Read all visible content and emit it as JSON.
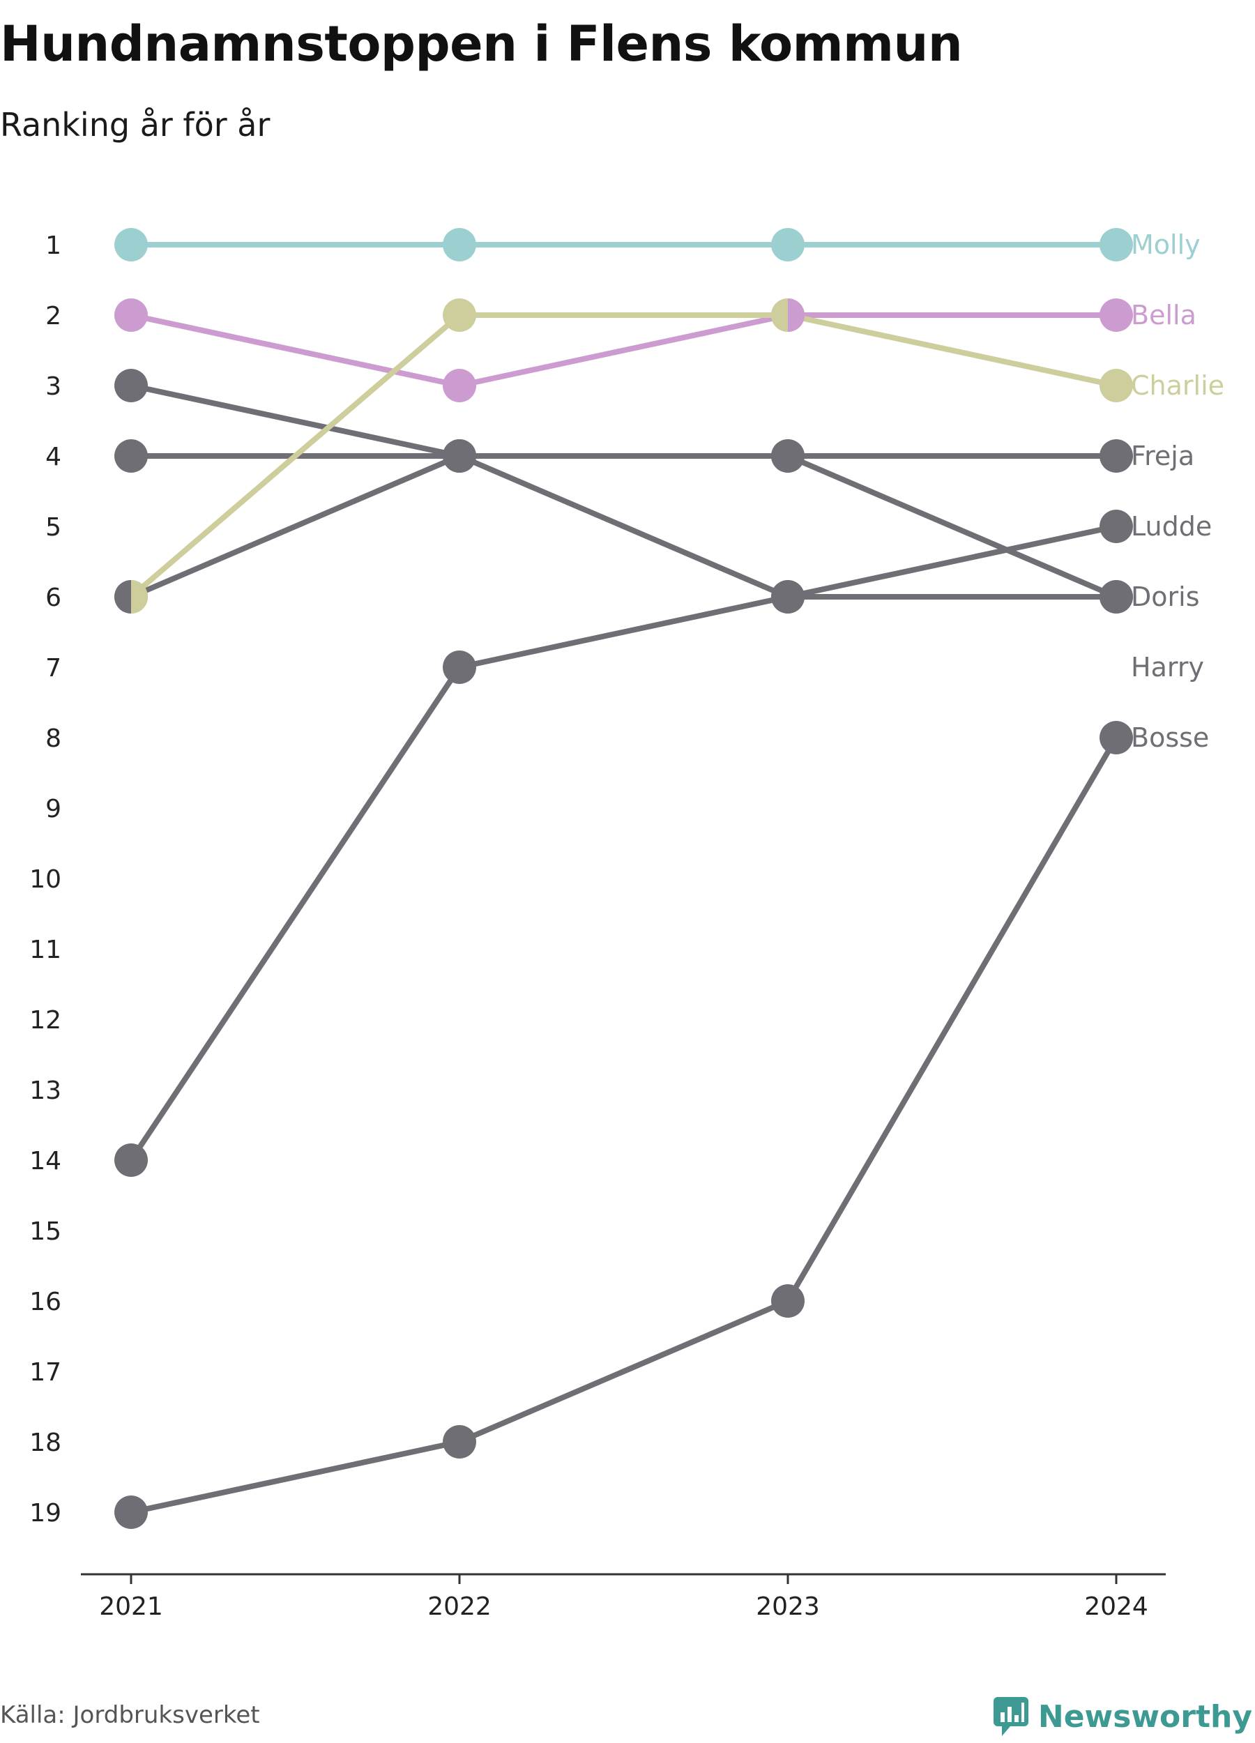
{
  "title": "Hundnamnstoppen i Flens kommun",
  "subtitle": "Ranking år för år",
  "source": "Källa: Jordbruksverket",
  "brand": "Newsworthy",
  "colors": {
    "Molly": "#9ccfcf",
    "Bella": "#cc9bcf",
    "Charlie": "#cdce9b",
    "other": "#6f6e75",
    "axis": "#333333",
    "brand": "#3c9a92"
  },
  "chart_data": {
    "type": "line",
    "x": [
      "2021",
      "2022",
      "2023",
      "2024"
    ],
    "y_ticks": [
      "1",
      "2",
      "3",
      "4",
      "5",
      "6",
      "7",
      "8",
      "9",
      "10",
      "11",
      "12",
      "13",
      "14",
      "15",
      "16",
      "17",
      "18",
      "19"
    ],
    "ylim": [
      1,
      19
    ],
    "y_inverted": true,
    "grid": false,
    "legend": "direct-labels-right",
    "series": [
      {
        "name": "Molly",
        "values": [
          1,
          1,
          1,
          1
        ]
      },
      {
        "name": "Bella",
        "values": [
          2,
          3,
          2,
          2
        ]
      },
      {
        "name": "Charlie",
        "values": [
          6,
          2,
          2,
          3
        ]
      },
      {
        "name": "Freja",
        "values": [
          4,
          4,
          4,
          4
        ]
      },
      {
        "name": "Ludde",
        "values": [
          14,
          7,
          6,
          5
        ]
      },
      {
        "name": "Doris",
        "values": [
          3,
          4,
          6,
          6
        ]
      },
      {
        "name": "Harry",
        "values": [
          6,
          4,
          4,
          6
        ]
      },
      {
        "name": "Bosse",
        "values": [
          19,
          18,
          16,
          8
        ]
      }
    ],
    "label_ranks": {
      "Molly": 1,
      "Bella": 2,
      "Charlie": 3,
      "Freja": 4,
      "Ludde": 5,
      "Doris": 6,
      "Harry": 7,
      "Bosse": 8
    }
  }
}
